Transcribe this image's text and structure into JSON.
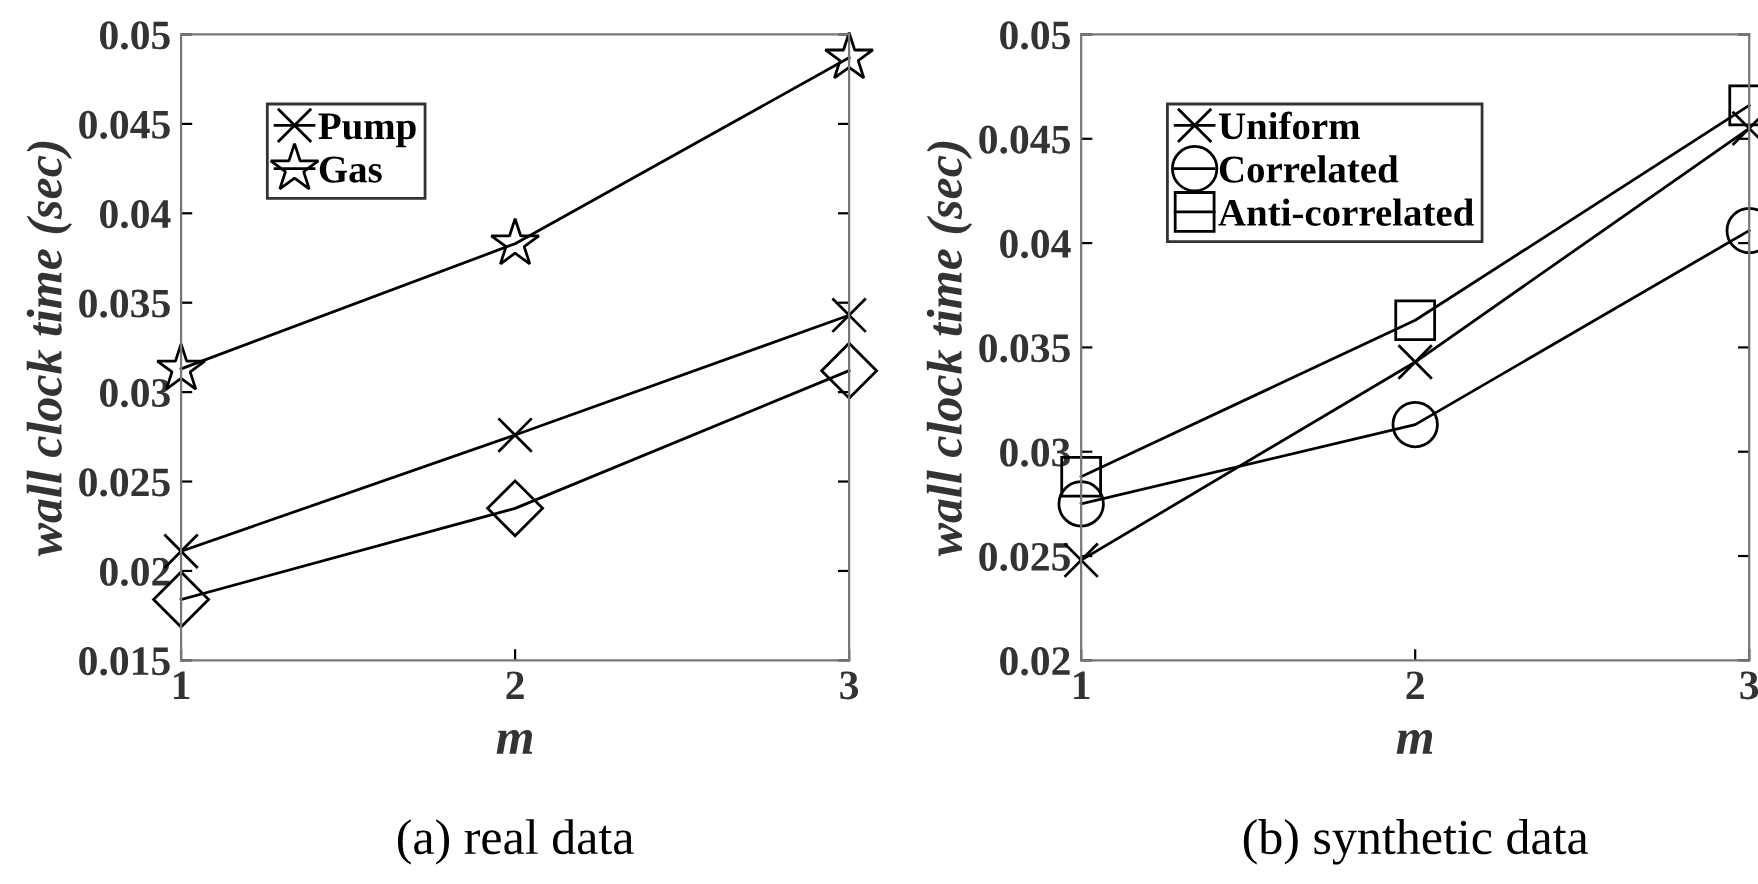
{
  "chart_data": [
    {
      "type": "line",
      "xlabel": "m",
      "ylabel": "wall clock time (sec)",
      "x": [
        1,
        2,
        3
      ],
      "xlim": [
        1,
        3
      ],
      "xticks": [
        1,
        2,
        3
      ],
      "ylim": [
        0.015,
        0.05
      ],
      "yticks": [
        0.015,
        0.02,
        0.025,
        0.03,
        0.035,
        0.04,
        0.045,
        0.05
      ],
      "grid": false,
      "legend": "top left",
      "annotations": [
        "(a) real data"
      ],
      "series": [
        {
          "color": "#000000",
          "marker": "diamond",
          "values": [
            0.0184,
            0.0235,
            0.0312
          ]
        },
        {
          "name": "Pump",
          "color": "#000000",
          "marker": "cross",
          "values": [
            0.0211,
            0.0276,
            0.0343
          ]
        },
        {
          "name": "Gas",
          "color": "#000000",
          "marker": "star",
          "values": [
            0.0313,
            0.0383,
            0.0487
          ]
        }
      ]
    },
    {
      "type": "line",
      "xlabel": "m",
      "ylabel": "wall clock time (sec)",
      "x": [
        1,
        2,
        3
      ],
      "xlim": [
        1,
        3
      ],
      "xticks": [
        1,
        2,
        3
      ],
      "ylim": [
        0.02,
        0.05
      ],
      "yticks": [
        0.02,
        0.025,
        0.03,
        0.035,
        0.04,
        0.045,
        0.05
      ],
      "grid": false,
      "legend": "top left",
      "annotations": [
        "(b) synthetic data"
      ],
      "series": [
        {
          "name": "Uniform",
          "color": "#000000",
          "marker": "cross",
          "values": [
            0.0248,
            0.0343,
            0.0455
          ]
        },
        {
          "name": "Correlated",
          "color": "#000000",
          "marker": "circle",
          "values": [
            0.0275,
            0.0313,
            0.0406
          ]
        },
        {
          "name": "Anti-correlated",
          "color": "#000000",
          "marker": "square",
          "values": [
            0.0288,
            0.0363,
            0.0466
          ]
        }
      ]
    }
  ]
}
